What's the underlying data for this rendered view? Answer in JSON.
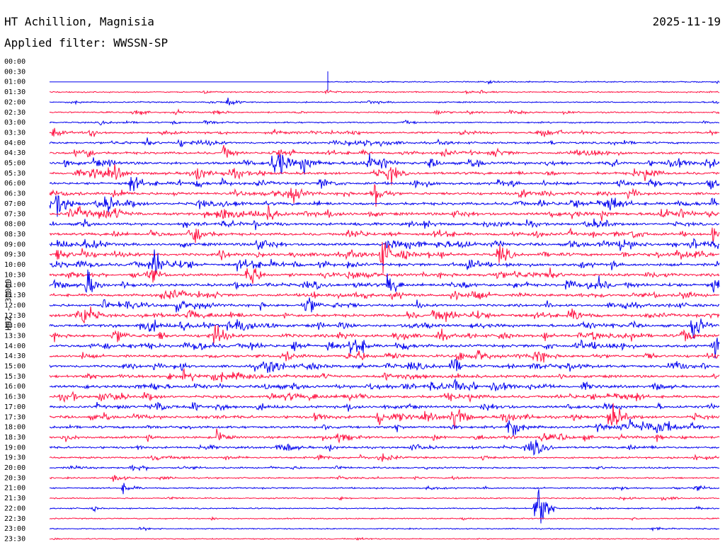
{
  "header": {
    "station": "HT Achillion, Magnisia",
    "date": "2025-11-19",
    "filter": "Applied filter: WWSSN-SP"
  },
  "chart_data": {
    "type": "line",
    "ylabel": "HHZ - 30000",
    "row_labels": [
      "00:00",
      "00:30",
      "01:00",
      "01:30",
      "02:00",
      "02:30",
      "03:00",
      "03:30",
      "04:00",
      "04:30",
      "05:00",
      "05:30",
      "06:00",
      "06:30",
      "07:00",
      "07:30",
      "08:00",
      "08:30",
      "09:00",
      "09:30",
      "10:00",
      "10:30",
      "11:00",
      "11:30",
      "12:00",
      "12:30",
      "13:00",
      "13:30",
      "14:00",
      "14:30",
      "15:00",
      "15:30",
      "16:00",
      "16:30",
      "17:00",
      "17:30",
      "18:00",
      "18:30",
      "19:00",
      "19:30",
      "20:00",
      "20:30",
      "21:00",
      "21:30",
      "22:00",
      "22:30",
      "23:00",
      "23:30"
    ],
    "trace_colors": [
      "#0000ee",
      "#ff1040"
    ],
    "data_start_time": "01:00",
    "data_start_fraction": 0.415,
    "row_activity": [
      0,
      0,
      0.15,
      0.2,
      0.2,
      0.3,
      0.3,
      0.6,
      0.6,
      0.8,
      1.0,
      0.9,
      0.9,
      0.9,
      1.0,
      1.0,
      0.9,
      0.9,
      1.0,
      1.0,
      1.0,
      0.9,
      1.0,
      0.9,
      0.9,
      1.0,
      1.0,
      1.0,
      1.0,
      0.9,
      0.9,
      0.9,
      0.9,
      0.9,
      0.8,
      0.9,
      0.8,
      0.7,
      0.6,
      0.5,
      0.4,
      0.3,
      0.3,
      0.2,
      0.2,
      0.15,
      0.1,
      0.1
    ],
    "events": [
      {
        "row": 4,
        "fraction": 0.265,
        "amp": 0.9
      },
      {
        "row": 5,
        "fraction": 0.125,
        "amp": 0.8
      },
      {
        "row": 5,
        "fraction": 0.575,
        "amp": 0.7
      },
      {
        "row": 7,
        "fraction": 0.005,
        "amp": 1.0
      },
      {
        "row": 7,
        "fraction": 0.06,
        "amp": 1.2
      },
      {
        "row": 7,
        "fraction": 0.735,
        "amp": 0.9
      },
      {
        "row": 9,
        "fraction": 0.26,
        "amp": 1.5
      },
      {
        "row": 10,
        "fraction": 0.34,
        "amp": 2.5
      },
      {
        "row": 10,
        "fraction": 0.475,
        "amp": 2.0
      },
      {
        "row": 11,
        "fraction": 0.89,
        "amp": 1.6
      },
      {
        "row": 12,
        "fraction": 0.12,
        "amp": 2.0
      },
      {
        "row": 13,
        "fraction": 0.485,
        "amp": 2.5
      },
      {
        "row": 14,
        "fraction": 0.01,
        "amp": 1.5
      },
      {
        "row": 15,
        "fraction": 0.325,
        "amp": 1.8
      },
      {
        "row": 17,
        "fraction": 0.99,
        "amp": 2.5
      },
      {
        "row": 19,
        "fraction": 0.495,
        "amp": 4.0
      },
      {
        "row": 19,
        "fraction": 0.67,
        "amp": 3.0
      },
      {
        "row": 20,
        "fraction": 0.155,
        "amp": 3.0
      },
      {
        "row": 21,
        "fraction": 0.295,
        "amp": 3.0
      },
      {
        "row": 22,
        "fraction": 0.055,
        "amp": 3.2
      },
      {
        "row": 22,
        "fraction": 0.505,
        "amp": 2.5
      },
      {
        "row": 24,
        "fraction": 0.19,
        "amp": 2.0
      },
      {
        "row": 25,
        "fraction": 0.05,
        "amp": 3.0
      },
      {
        "row": 26,
        "fraction": 0.96,
        "amp": 3.5
      },
      {
        "row": 27,
        "fraction": 0.245,
        "amp": 3.0
      },
      {
        "row": 28,
        "fraction": 0.45,
        "amp": 3.5
      },
      {
        "row": 28,
        "fraction": 0.99,
        "amp": 3.0
      },
      {
        "row": 30,
        "fraction": 0.6,
        "amp": 2.5
      },
      {
        "row": 32,
        "fraction": 0.605,
        "amp": 2.2
      },
      {
        "row": 35,
        "fraction": 0.49,
        "amp": 2.5
      },
      {
        "row": 35,
        "fraction": 0.6,
        "amp": 3.0
      },
      {
        "row": 35,
        "fraction": 0.835,
        "amp": 2.8
      },
      {
        "row": 36,
        "fraction": 0.685,
        "amp": 2.0
      },
      {
        "row": 37,
        "fraction": 0.25,
        "amp": 1.5
      },
      {
        "row": 38,
        "fraction": 0.225,
        "amp": 1.2
      },
      {
        "row": 38,
        "fraction": 0.72,
        "amp": 2.0
      },
      {
        "row": 42,
        "fraction": 0.11,
        "amp": 1.0
      },
      {
        "row": 44,
        "fraction": 0.725,
        "amp": 3.5
      },
      {
        "row": 44,
        "fraction": 0.73,
        "amp": 2.5
      }
    ]
  }
}
